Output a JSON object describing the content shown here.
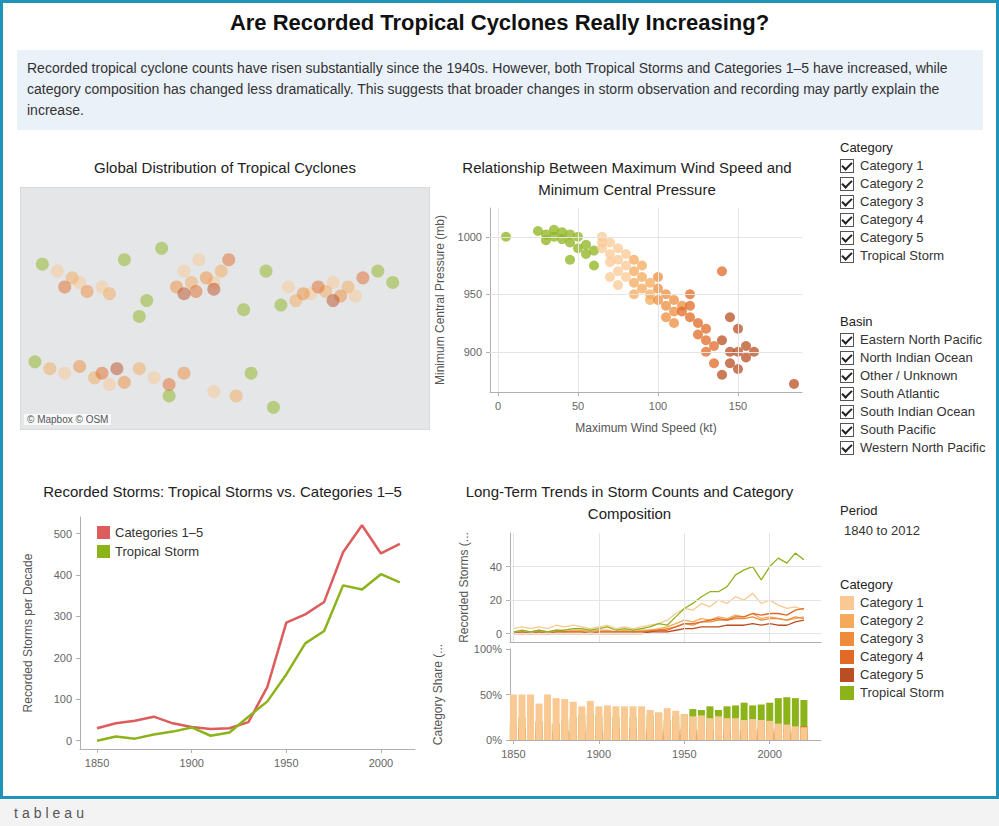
{
  "title": "Are Recorded Tropical Cyclones Really Increasing?",
  "description": "Recorded tropical cyclone counts have risen substantially since the 1940s. However, both Tropical Storms and Categories 1–5 have increased, while category composition has changed less dramatically. This suggests that broader changes in storm observation and recording may partly explain the increase.",
  "filters": {
    "category": {
      "title": "Category",
      "items": [
        "Category 1",
        "Category 2",
        "Category 3",
        "Category 4",
        "Category 5",
        "Tropical Storm"
      ]
    },
    "basin": {
      "title": "Basin",
      "items": [
        "Eastern North Pacific",
        "North Indian Ocean",
        "Other / Unknown",
        "South Atlantic",
        "South Indian Ocean",
        "South Pacific",
        "Western North Pacific"
      ]
    },
    "period": {
      "title": "Period",
      "value": "1840 to 2012"
    }
  },
  "color_legend": {
    "title": "Category",
    "items": [
      {
        "name": "Category 1",
        "color": "#f9c893"
      },
      {
        "name": "Category 2",
        "color": "#f4a95b"
      },
      {
        "name": "Category 3",
        "color": "#ee8c3c"
      },
      {
        "name": "Category 4",
        "color": "#e06a26"
      },
      {
        "name": "Category 5",
        "color": "#b94d23"
      },
      {
        "name": "Tropical Storm",
        "color": "#8db31b"
      }
    ]
  },
  "footer": "tableau",
  "chart_data": [
    {
      "type": "scatter",
      "title": "Global Distribution of Tropical Cyclones",
      "annotations": [
        "© Mapbox © OSM"
      ],
      "xlim": [
        30,
        305
      ],
      "ylim": [
        -45,
        62
      ],
      "tick_labels": false,
      "grid": false,
      "series": [
        {
          "name": "Category 1",
          "color": "#f9c893",
          "x": [
            55,
            70,
            85,
            140,
            150,
            160,
            210,
            225,
            240,
            255,
            60,
            90,
            120,
            160
          ],
          "y": [
            25,
            20,
            18,
            25,
            30,
            20,
            18,
            15,
            20,
            14,
            -20,
            -25,
            -22,
            -28
          ]
        },
        {
          "name": "Category 2",
          "color": "#f4a95b",
          "x": [
            65,
            90,
            145,
            165,
            215,
            235,
            250,
            50,
            80,
            110,
            175
          ],
          "y": [
            22,
            15,
            20,
            25,
            12,
            16,
            18,
            -18,
            -22,
            -18,
            -30
          ]
        },
        {
          "name": "Category 3",
          "color": "#ee8c3c",
          "x": [
            75,
            135,
            155,
            220,
            245,
            70,
            100,
            140
          ],
          "y": [
            16,
            18,
            22,
            15,
            14,
            -17,
            -24,
            -20
          ]
        },
        {
          "name": "Category 4",
          "color": "#e06a26",
          "x": [
            60,
            148,
            170,
            230,
            260,
            85,
            130
          ],
          "y": [
            18,
            16,
            30,
            18,
            22,
            -20,
            -25
          ]
        },
        {
          "name": "Category 5",
          "color": "#b94d23",
          "x": [
            140,
            160,
            240,
            95
          ],
          "y": [
            15,
            17,
            12,
            -18
          ]
        },
        {
          "name": "Tropical Storm",
          "color": "#8db31b",
          "x": [
            45,
            100,
            115,
            125,
            180,
            195,
            205,
            270,
            280,
            40,
            130,
            185,
            200,
            110
          ],
          "y": [
            28,
            30,
            12,
            35,
            8,
            25,
            10,
            25,
            20,
            -15,
            -30,
            -20,
            -35,
            5
          ]
        }
      ]
    },
    {
      "type": "scatter",
      "title": "Relationship Between Maximum Wind Speed and Minimum Central Pressure",
      "x_label": "Maximum Wind Speed (kt)",
      "y_label": "Minimum Central Pressure (mb)",
      "xlim": [
        -5,
        190
      ],
      "xticks": [
        0,
        50,
        100,
        150
      ],
      "ylim": [
        865,
        1025
      ],
      "yticks": [
        900,
        950,
        1000
      ],
      "grid": true,
      "series": [
        {
          "name": "Tropical Storm",
          "color": "#8db31b",
          "x": [
            5,
            25,
            30,
            35,
            35,
            40,
            40,
            45,
            45,
            50,
            50,
            55,
            55,
            60,
            60,
            30,
            45
          ],
          "y": [
            1000,
            1005,
            1002,
            1000,
            1006,
            998,
            1004,
            995,
            1002,
            990,
            1000,
            993,
            985,
            988,
            975,
            997,
            980
          ]
        },
        {
          "name": "Category 1",
          "color": "#f9c893",
          "x": [
            65,
            65,
            70,
            70,
            75,
            75,
            80,
            80,
            70,
            75,
            65,
            80,
            70,
            75
          ],
          "y": [
            990,
            995,
            985,
            978,
            980,
            970,
            975,
            965,
            995,
            990,
            1000,
            985,
            965,
            958
          ]
        },
        {
          "name": "Category 2",
          "color": "#f4a95b",
          "x": [
            85,
            85,
            90,
            90,
            95,
            95,
            85,
            90,
            95,
            85
          ],
          "y": [
            970,
            960,
            965,
            955,
            960,
            950,
            980,
            975,
            945,
            950
          ]
        },
        {
          "name": "Category 3",
          "color": "#ee8c3c",
          "x": [
            100,
            100,
            105,
            105,
            110,
            110,
            100,
            105,
            110,
            115
          ],
          "y": [
            955,
            945,
            950,
            940,
            945,
            935,
            965,
            930,
            925,
            940
          ]
        },
        {
          "name": "Category 4",
          "color": "#e06a26",
          "x": [
            115,
            120,
            120,
            125,
            125,
            130,
            130,
            135,
            120,
            140,
            130,
            135
          ],
          "y": [
            935,
            930,
            940,
            925,
            915,
            920,
            910,
            905,
            950,
            970,
            900,
            890
          ]
        },
        {
          "name": "Category 5",
          "color": "#b94d23",
          "x": [
            140,
            145,
            145,
            150,
            150,
            155,
            155,
            160,
            140,
            185,
            150,
            145
          ],
          "y": [
            910,
            900,
            890,
            900,
            885,
            895,
            905,
            900,
            880,
            872,
            920,
            930
          ]
        }
      ]
    },
    {
      "type": "line",
      "title": "Recorded Storms: Tropical Storms vs. Categories 1–5",
      "y_label": "Recorded Storms per Decade",
      "x": [
        1850,
        1860,
        1870,
        1880,
        1890,
        1900,
        1910,
        1920,
        1930,
        1940,
        1950,
        1960,
        1970,
        1980,
        1990,
        2000,
        2010
      ],
      "xlim": [
        1841,
        2018
      ],
      "xticks": [
        1850,
        1900,
        1950,
        2000
      ],
      "ylim": [
        -20,
        540
      ],
      "yticks": [
        0,
        100,
        200,
        300,
        400,
        500
      ],
      "grid": false,
      "legend": "top-left",
      "series": [
        {
          "name": "Categories 1–5",
          "color": "#dd5c5c",
          "values": [
            30,
            42,
            48,
            58,
            42,
            33,
            28,
            30,
            45,
            130,
            285,
            305,
            335,
            455,
            520,
            452,
            475
          ]
        },
        {
          "name": "Tropical Storm",
          "color": "#8db31b",
          "values": [
            0,
            10,
            5,
            15,
            22,
            32,
            12,
            20,
            58,
            95,
            160,
            235,
            265,
            375,
            365,
            402,
            382
          ]
        }
      ]
    },
    {
      "type": "line",
      "title": "Long-Term Trends in Storm Counts and Category Composition",
      "y_label": "Recorded Storms (...",
      "x": [
        1850,
        1855,
        1860,
        1865,
        1870,
        1875,
        1880,
        1885,
        1890,
        1895,
        1900,
        1905,
        1910,
        1915,
        1920,
        1925,
        1930,
        1935,
        1940,
        1945,
        1950,
        1955,
        1960,
        1965,
        1970,
        1975,
        1980,
        1985,
        1990,
        1995,
        2000,
        2005,
        2010,
        2015,
        2020
      ],
      "xlim": [
        1848,
        2030
      ],
      "xticks": [
        1850,
        1900,
        1950,
        2000
      ],
      "ylim": [
        -5,
        60
      ],
      "yticks": [
        0,
        20,
        40
      ],
      "tick_labels": "y",
      "grid": true,
      "series": [
        {
          "name": "Category 1",
          "color": "#f9c893",
          "values": [
            3,
            4,
            3,
            4,
            3,
            5,
            4,
            5,
            4,
            3,
            4,
            5,
            3,
            4,
            3,
            4,
            5,
            6,
            8,
            12,
            15,
            14,
            18,
            16,
            20,
            18,
            22,
            20,
            24,
            18,
            20,
            17,
            15,
            16,
            14
          ]
        },
        {
          "name": "Category 2",
          "color": "#f4a95b",
          "values": [
            1,
            1,
            1,
            2,
            1,
            2,
            1,
            2,
            2,
            1,
            2,
            2,
            1,
            2,
            1,
            2,
            2,
            3,
            4,
            6,
            8,
            7,
            9,
            8,
            10,
            9,
            11,
            10,
            12,
            9,
            10,
            9,
            8,
            9,
            10
          ]
        },
        {
          "name": "Category 3",
          "color": "#ee8c3c",
          "values": [
            1,
            0,
            1,
            1,
            1,
            1,
            1,
            1,
            1,
            1,
            1,
            1,
            1,
            1,
            1,
            1,
            2,
            2,
            3,
            4,
            6,
            5,
            7,
            7,
            8,
            8,
            9,
            9,
            10,
            8,
            9,
            9,
            8,
            10,
            9
          ]
        },
        {
          "name": "Category 4",
          "color": "#e06a26",
          "values": [
            0,
            1,
            0,
            1,
            0,
            1,
            1,
            1,
            1,
            0,
            1,
            1,
            1,
            1,
            1,
            1,
            1,
            2,
            2,
            4,
            6,
            6,
            7,
            8,
            9,
            8,
            10,
            10,
            12,
            11,
            12,
            12,
            11,
            14,
            15
          ]
        },
        {
          "name": "Category 5",
          "color": "#b94d23",
          "values": [
            0,
            0,
            0,
            0,
            0,
            0,
            0,
            0,
            0,
            0,
            0,
            0,
            0,
            0,
            0,
            0,
            1,
            1,
            1,
            2,
            3,
            3,
            4,
            4,
            4,
            5,
            5,
            5,
            6,
            5,
            6,
            5,
            5,
            7,
            8
          ]
        },
        {
          "name": "Tropical Storm",
          "color": "#8db31b",
          "values": [
            1,
            2,
            1,
            2,
            1,
            2,
            2,
            3,
            3,
            2,
            3,
            4,
            2,
            3,
            2,
            3,
            4,
            6,
            5,
            10,
            15,
            18,
            22,
            25,
            25,
            28,
            35,
            38,
            40,
            32,
            40,
            45,
            42,
            48,
            44
          ]
        }
      ]
    },
    {
      "type": "bar",
      "stacked": true,
      "y_label": "Category Share (...",
      "x": [
        1850,
        1855,
        1860,
        1865,
        1870,
        1875,
        1880,
        1885,
        1890,
        1895,
        1900,
        1905,
        1910,
        1915,
        1920,
        1925,
        1930,
        1935,
        1940,
        1945,
        1950,
        1955,
        1960,
        1965,
        1970,
        1975,
        1980,
        1985,
        1990,
        1995,
        2000,
        2005,
        2010,
        2015,
        2020
      ],
      "xlim": [
        1848,
        2030
      ],
      "xticks": [
        1850,
        1900,
        1950,
        2000
      ],
      "ylim": [
        0,
        100
      ],
      "yticks": [
        {
          "value": 0,
          "label": "0%"
        },
        {
          "value": 50,
          "label": "50%"
        },
        {
          "value": 100,
          "label": "100%"
        }
      ],
      "grid": false,
      "series": [
        {
          "name": "Tropical Storm",
          "color": "#8db31b",
          "values": [
            17,
            25,
            17,
            20,
            17,
            18,
            22,
            25,
            27,
            29,
            27,
            31,
            25,
            27,
            25,
            27,
            27,
            30,
            22,
            26,
            28,
            34,
            33,
            37,
            33,
            37,
            38,
            41,
            38,
            39,
            41,
            46,
            47,
            46,
            44
          ]
        },
        {
          "name": "Category 5",
          "color": "#b94d23",
          "values": [
            0,
            0,
            0,
            0,
            0,
            0,
            0,
            0,
            0,
            0,
            0,
            0,
            0,
            0,
            0,
            0,
            7,
            5,
            4,
            5,
            6,
            6,
            6,
            5,
            5,
            7,
            5,
            5,
            5,
            5,
            6,
            6,
            6,
            7,
            8
          ]
        },
        {
          "name": "Category 4",
          "color": "#e06a26",
          "values": [
            0,
            13,
            0,
            10,
            0,
            9,
            11,
            8,
            9,
            0,
            9,
            8,
            13,
            9,
            13,
            9,
            7,
            10,
            9,
            10,
            12,
            11,
            11,
            12,
            12,
            10,
            11,
            11,
            12,
            13,
            13,
            12,
            12,
            13,
            15
          ]
        },
        {
          "name": "Category 3",
          "color": "#ee8c3c",
          "values": [
            16,
            0,
            16,
            10,
            16,
            9,
            11,
            8,
            9,
            14,
            9,
            8,
            12,
            9,
            12,
            9,
            13,
            10,
            13,
            11,
            11,
            10,
            10,
            10,
            11,
            10,
            10,
            10,
            10,
            10,
            9,
            9,
            9,
            10,
            9
          ]
        },
        {
          "name": "Category 2",
          "color": "#f4a95b",
          "values": [
            17,
            12,
            17,
            20,
            17,
            18,
            11,
            17,
            18,
            14,
            18,
            15,
            13,
            18,
            13,
            18,
            13,
            15,
            17,
            16,
            15,
            13,
            13,
            12,
            13,
            12,
            12,
            11,
            12,
            11,
            10,
            9,
            9,
            9,
            10
          ]
        },
        {
          "name": "Category 1",
          "color": "#f9c893",
          "values": [
            50,
            50,
            50,
            40,
            50,
            46,
            45,
            42,
            37,
            43,
            37,
            38,
            37,
            37,
            37,
            37,
            33,
            30,
            35,
            32,
            28,
            26,
            27,
            24,
            26,
            24,
            24,
            22,
            23,
            22,
            21,
            18,
            17,
            15,
            14
          ]
        }
      ]
    }
  ]
}
